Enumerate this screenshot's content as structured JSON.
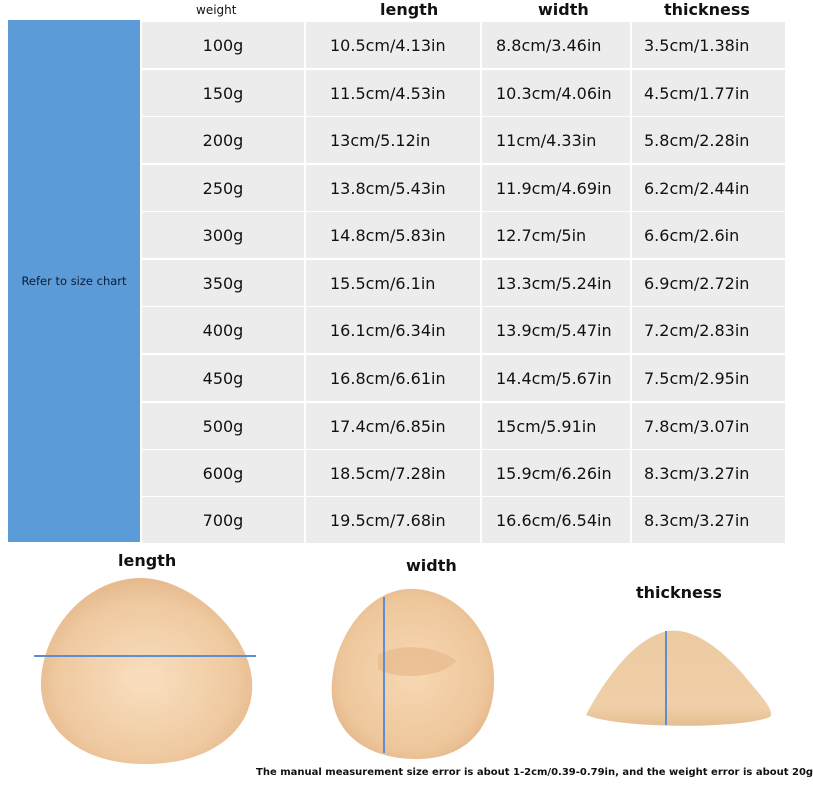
{
  "headers": {
    "weight": "weight",
    "length": "length",
    "width": "width",
    "thickness": "thickness"
  },
  "side_label": "Refer to size chart",
  "rows": [
    {
      "weight": "100g",
      "length": "10.5cm/4.13in",
      "width": "8.8cm/3.46in",
      "thickness": "3.5cm/1.38in"
    },
    {
      "weight": "150g",
      "length": "11.5cm/4.53in",
      "width": "10.3cm/4.06in",
      "thickness": "4.5cm/1.77in"
    },
    {
      "weight": "200g",
      "length": "13cm/5.12in",
      "width": "11cm/4.33in",
      "thickness": "5.8cm/2.28in"
    },
    {
      "weight": "250g",
      "length": "13.8cm/5.43in",
      "width": "11.9cm/4.69in",
      "thickness": "6.2cm/2.44in"
    },
    {
      "weight": "300g",
      "length": "14.8cm/5.83in",
      "width": "12.7cm/5in",
      "thickness": "6.6cm/2.6in"
    },
    {
      "weight": "350g",
      "length": "15.5cm/6.1in",
      "width": "13.3cm/5.24in",
      "thickness": "6.9cm/2.72in"
    },
    {
      "weight": "400g",
      "length": "16.1cm/6.34in",
      "width": "13.9cm/5.47in",
      "thickness": "7.2cm/2.83in"
    },
    {
      "weight": "450g",
      "length": "16.8cm/6.61in",
      "width": "14.4cm/5.67in",
      "thickness": "7.5cm/2.95in"
    },
    {
      "weight": "500g",
      "length": "17.4cm/6.85in",
      "width": "15cm/5.91in",
      "thickness": "7.8cm/3.07in"
    },
    {
      "weight": "600g",
      "length": "18.5cm/7.28in",
      "width": "15.9cm/6.26in",
      "thickness": "8.3cm/3.27in"
    },
    {
      "weight": "700g",
      "length": "19.5cm/7.68in",
      "width": "16.6cm/6.54in",
      "thickness": "8.3cm/3.27in"
    }
  ],
  "illustrations": {
    "length_label": "length",
    "width_label": "width",
    "thickness_label": "thickness"
  },
  "note": "The manual measurement size error is about 1-2cm/0.39-0.79in, and the weight error is about 20g",
  "colors": {
    "side_panel": "#5b9bd8",
    "cell": "#ececec",
    "measure_line": "#5b8fd0",
    "skin": "#f2cfa6"
  }
}
